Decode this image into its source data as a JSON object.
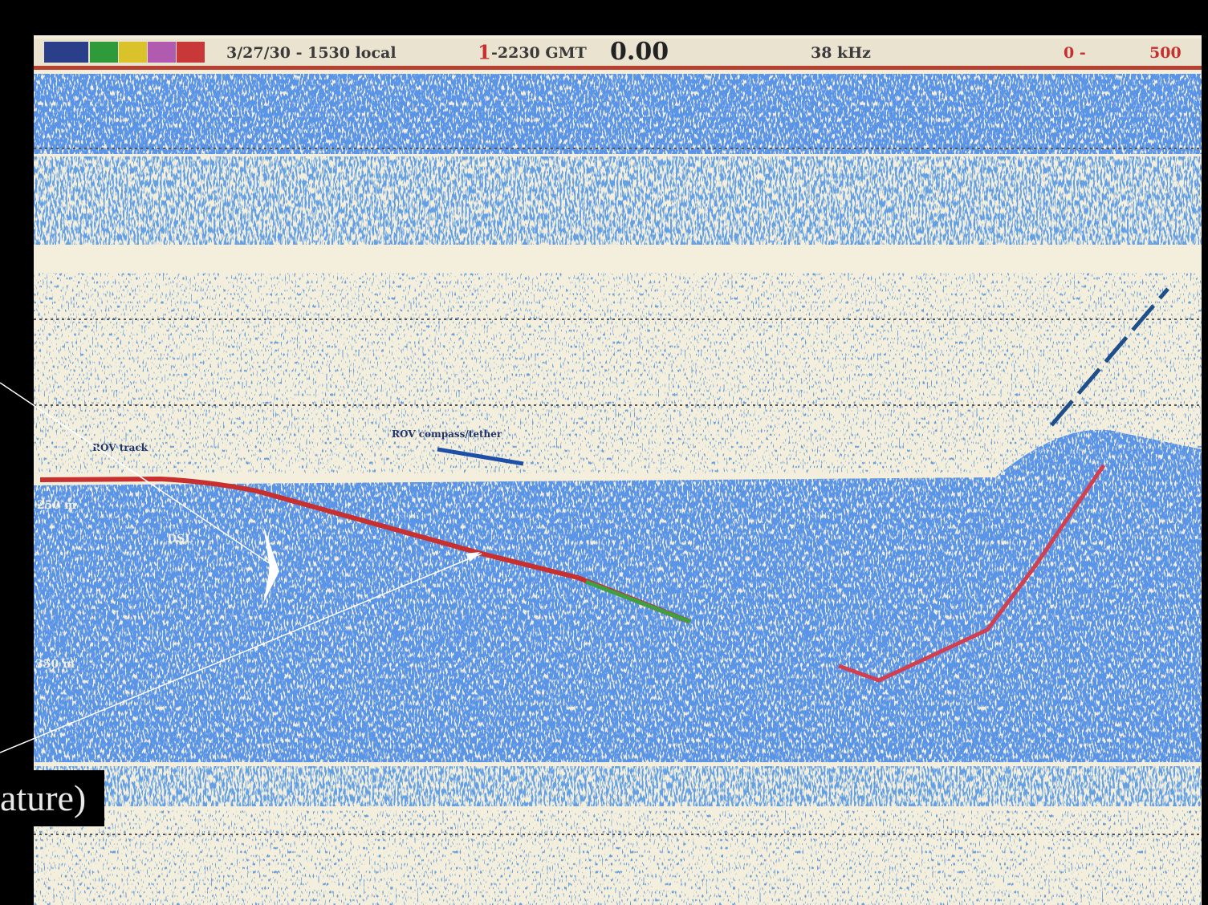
{
  "header": {
    "date_time": "3/27/30  - 1530 local",
    "marker": "1",
    "gmt": "-2230 GMT",
    "counter": "0.00",
    "frequency": "38 kHz",
    "range_start": "0 -",
    "range_end": "500"
  },
  "labels": {
    "rov_track": "ROV track",
    "rov_compass": "ROV compass/tether",
    "depth_250": "250 m",
    "dsl": "DSL",
    "depth_350": "350 m"
  },
  "caption": "ature)"
}
